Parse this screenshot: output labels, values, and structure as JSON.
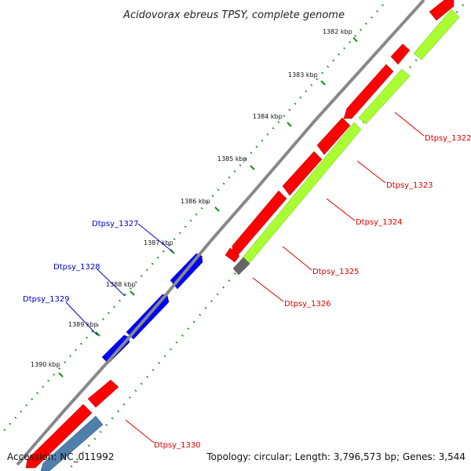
{
  "title": "Acidovorax ebreus TPSY, complete genome",
  "footer": {
    "accession": "Accession: NC_011992",
    "topology": "Topology: circular; Length: 3,796,573 bp; Genes: 3,544"
  },
  "kbp_ticks": [
    "1382 kbp",
    "1383 kbp",
    "1384 kbp",
    "1385 kbp",
    "1386 kbp",
    "1387 kbp",
    "1388 kbp",
    "1389 kbp",
    "1390 kbp"
  ],
  "genes": [
    {
      "label": "Dtpsy_1322",
      "side": "right"
    },
    {
      "label": "Dtpsy_1323",
      "side": "right"
    },
    {
      "label": "Dtpsy_1324",
      "side": "right"
    },
    {
      "label": "Dtpsy_1325",
      "side": "right"
    },
    {
      "label": "Dtpsy_1326",
      "side": "right"
    },
    {
      "label": "Dtpsy_1327",
      "side": "left"
    },
    {
      "label": "Dtpsy_1328",
      "side": "left"
    },
    {
      "label": "Dtpsy_1329",
      "side": "left"
    },
    {
      "label": "Dtpsy_1330",
      "side": "right"
    }
  ],
  "colors": {
    "forward_cds": "#ff0000",
    "reverse_cds": "#0000ff",
    "orf": "#aaff33",
    "gray_feature": "#666666",
    "steel_feature": "#4f7fab",
    "backbone": "#888888",
    "tick": "#1a8a1a",
    "label_red": "#dd0000",
    "label_blue": "#0000cc"
  }
}
